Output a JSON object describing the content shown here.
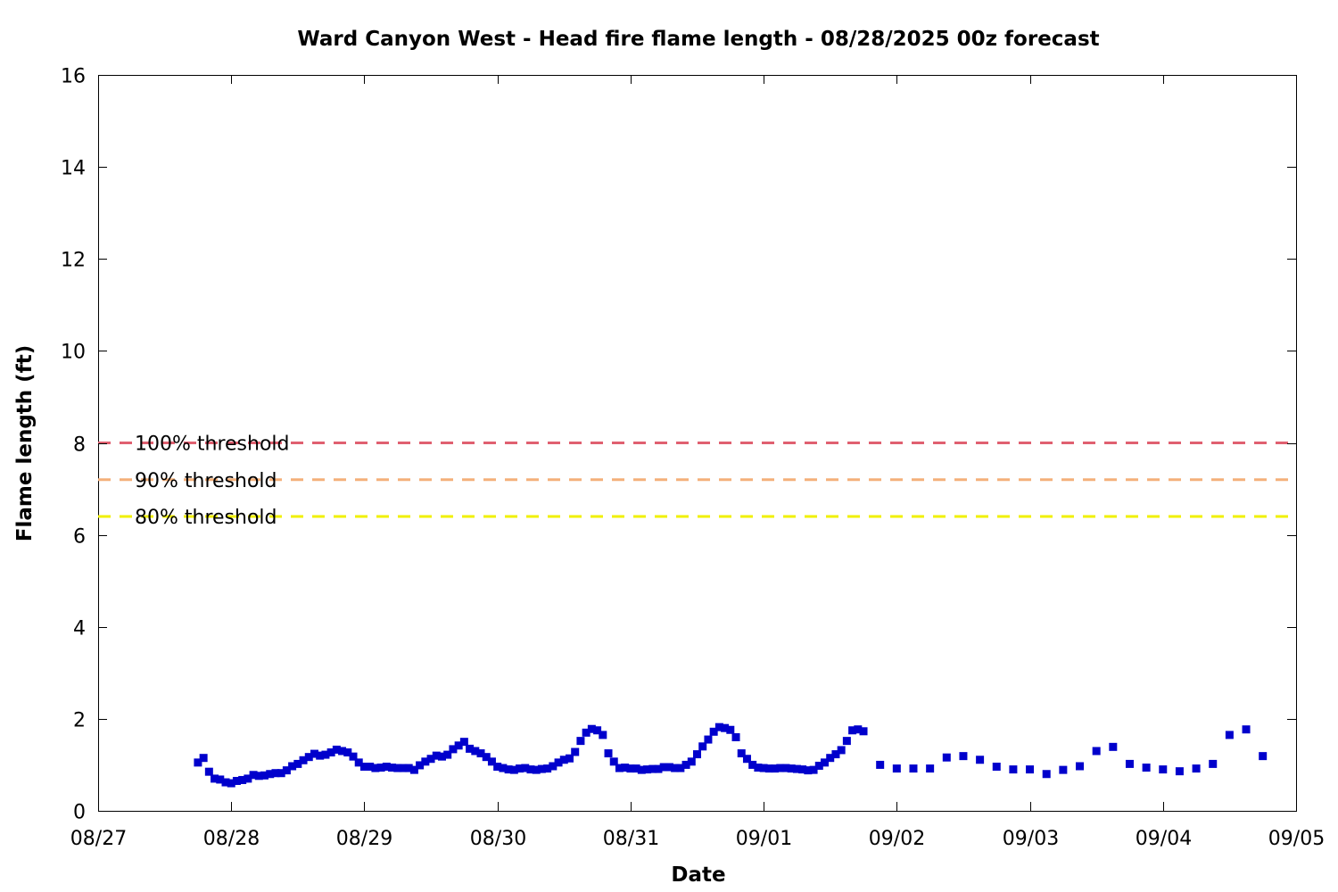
{
  "chart_data": {
    "type": "scatter",
    "title": "Ward Canyon West - Head fire flame length - 08/28/2025 00z forecast",
    "xlabel": "Date",
    "ylabel": "Flame length (ft)",
    "x_axis": {
      "type": "date",
      "range": [
        "08/27",
        "09/05"
      ],
      "ticks": [
        "08/27",
        "08/28",
        "08/29",
        "08/30",
        "08/31",
        "09/01",
        "09/02",
        "09/03",
        "09/04",
        "09/05"
      ]
    },
    "y_axis": {
      "range": [
        0,
        16
      ],
      "ticks": [
        0,
        2,
        4,
        6,
        8,
        10,
        12,
        14,
        16
      ]
    },
    "grid": false,
    "thresholds": [
      {
        "label": "100% threshold",
        "value": 8.0,
        "color": "#e06070"
      },
      {
        "label": "90% threshold",
        "value": 7.2,
        "color": "#f4b07a"
      },
      {
        "label": "80% threshold",
        "value": 6.4,
        "color": "#f0f000"
      }
    ],
    "series": [
      {
        "color": "#0000cc",
        "marker": "square",
        "points": [
          [
            "08/27 18:00",
            1.05
          ],
          [
            "08/27 19:00",
            1.15
          ],
          [
            "08/27 20:00",
            0.85
          ],
          [
            "08/27 21:00",
            0.7
          ],
          [
            "08/27 22:00",
            0.68
          ],
          [
            "08/27 23:00",
            0.62
          ],
          [
            "08/28 00:00",
            0.6
          ],
          [
            "08/28 01:00",
            0.65
          ],
          [
            "08/28 02:00",
            0.67
          ],
          [
            "08/28 03:00",
            0.7
          ],
          [
            "08/28 04:00",
            0.78
          ],
          [
            "08/28 05:00",
            0.76
          ],
          [
            "08/28 06:00",
            0.77
          ],
          [
            "08/28 07:00",
            0.8
          ],
          [
            "08/28 08:00",
            0.82
          ],
          [
            "08/28 09:00",
            0.82
          ],
          [
            "08/28 10:00",
            0.88
          ],
          [
            "08/28 11:00",
            0.97
          ],
          [
            "08/28 12:00",
            1.02
          ],
          [
            "08/28 13:00",
            1.1
          ],
          [
            "08/28 14:00",
            1.17
          ],
          [
            "08/28 15:00",
            1.24
          ],
          [
            "08/28 16:00",
            1.2
          ],
          [
            "08/28 17:00",
            1.22
          ],
          [
            "08/28 18:00",
            1.27
          ],
          [
            "08/28 19:00",
            1.33
          ],
          [
            "08/28 20:00",
            1.3
          ],
          [
            "08/28 21:00",
            1.27
          ],
          [
            "08/28 22:00",
            1.18
          ],
          [
            "08/28 23:00",
            1.05
          ],
          [
            "08/29 00:00",
            0.96
          ],
          [
            "08/29 01:00",
            0.96
          ],
          [
            "08/29 02:00",
            0.93
          ],
          [
            "08/29 03:00",
            0.94
          ],
          [
            "08/29 04:00",
            0.96
          ],
          [
            "08/29 05:00",
            0.94
          ],
          [
            "08/29 06:00",
            0.93
          ],
          [
            "08/29 07:00",
            0.93
          ],
          [
            "08/29 08:00",
            0.93
          ],
          [
            "08/29 09:00",
            0.89
          ],
          [
            "08/29 10:00",
            0.99
          ],
          [
            "08/29 11:00",
            1.07
          ],
          [
            "08/29 12:00",
            1.13
          ],
          [
            "08/29 13:00",
            1.2
          ],
          [
            "08/29 14:00",
            1.18
          ],
          [
            "08/29 15:00",
            1.22
          ],
          [
            "08/29 16:00",
            1.34
          ],
          [
            "08/29 17:00",
            1.42
          ],
          [
            "08/29 18:00",
            1.5
          ],
          [
            "08/29 19:00",
            1.35
          ],
          [
            "08/29 20:00",
            1.3
          ],
          [
            "08/29 21:00",
            1.25
          ],
          [
            "08/29 22:00",
            1.17
          ],
          [
            "08/29 23:00",
            1.07
          ],
          [
            "08/30 00:00",
            0.96
          ],
          [
            "08/30 01:00",
            0.93
          ],
          [
            "08/30 02:00",
            0.9
          ],
          [
            "08/30 03:00",
            0.89
          ],
          [
            "08/30 04:00",
            0.92
          ],
          [
            "08/30 05:00",
            0.93
          ],
          [
            "08/30 06:00",
            0.9
          ],
          [
            "08/30 07:00",
            0.89
          ],
          [
            "08/30 08:00",
            0.91
          ],
          [
            "08/30 09:00",
            0.92
          ],
          [
            "08/30 10:00",
            0.97
          ],
          [
            "08/30 11:00",
            1.05
          ],
          [
            "08/30 12:00",
            1.11
          ],
          [
            "08/30 13:00",
            1.14
          ],
          [
            "08/30 14:00",
            1.28
          ],
          [
            "08/30 15:00",
            1.52
          ],
          [
            "08/30 16:00",
            1.7
          ],
          [
            "08/30 17:00",
            1.78
          ],
          [
            "08/30 18:00",
            1.75
          ],
          [
            "08/30 19:00",
            1.65
          ],
          [
            "08/30 20:00",
            1.25
          ],
          [
            "08/30 21:00",
            1.07
          ],
          [
            "08/30 22:00",
            0.93
          ],
          [
            "08/30 23:00",
            0.94
          ],
          [
            "08/31 00:00",
            0.92
          ],
          [
            "08/31 01:00",
            0.92
          ],
          [
            "08/31 02:00",
            0.89
          ],
          [
            "08/31 03:00",
            0.9
          ],
          [
            "08/31 04:00",
            0.91
          ],
          [
            "08/31 05:00",
            0.91
          ],
          [
            "08/31 06:00",
            0.95
          ],
          [
            "08/31 07:00",
            0.95
          ],
          [
            "08/31 08:00",
            0.93
          ],
          [
            "08/31 09:00",
            0.93
          ],
          [
            "08/31 10:00",
            1.0
          ],
          [
            "08/31 11:00",
            1.07
          ],
          [
            "08/31 12:00",
            1.23
          ],
          [
            "08/31 13:00",
            1.4
          ],
          [
            "08/31 14:00",
            1.55
          ],
          [
            "08/31 15:00",
            1.72
          ],
          [
            "08/31 16:00",
            1.82
          ],
          [
            "08/31 17:00",
            1.8
          ],
          [
            "08/31 18:00",
            1.76
          ],
          [
            "08/31 19:00",
            1.6
          ],
          [
            "08/31 20:00",
            1.25
          ],
          [
            "08/31 21:00",
            1.13
          ],
          [
            "08/31 22:00",
            1.0
          ],
          [
            "08/31 23:00",
            0.94
          ],
          [
            "09/01 00:00",
            0.93
          ],
          [
            "09/01 01:00",
            0.92
          ],
          [
            "09/01 02:00",
            0.92
          ],
          [
            "09/01 03:00",
            0.93
          ],
          [
            "09/01 04:00",
            0.93
          ],
          [
            "09/01 05:00",
            0.92
          ],
          [
            "09/01 06:00",
            0.91
          ],
          [
            "09/01 07:00",
            0.9
          ],
          [
            "09/01 08:00",
            0.88
          ],
          [
            "09/01 09:00",
            0.89
          ],
          [
            "09/01 10:00",
            0.98
          ],
          [
            "09/01 11:00",
            1.05
          ],
          [
            "09/01 12:00",
            1.15
          ],
          [
            "09/01 13:00",
            1.23
          ],
          [
            "09/01 14:00",
            1.32
          ],
          [
            "09/01 15:00",
            1.52
          ],
          [
            "09/01 16:00",
            1.75
          ],
          [
            "09/01 17:00",
            1.77
          ],
          [
            "09/01 18:00",
            1.73
          ],
          [
            "09/01 21:00",
            1.0
          ],
          [
            "09/02 00:00",
            0.92
          ],
          [
            "09/02 03:00",
            0.92
          ],
          [
            "09/02 06:00",
            0.92
          ],
          [
            "09/02 09:00",
            1.16
          ],
          [
            "09/02 12:00",
            1.19
          ],
          [
            "09/02 15:00",
            1.11
          ],
          [
            "09/02 18:00",
            0.96
          ],
          [
            "09/02 21:00",
            0.9
          ],
          [
            "09/03 00:00",
            0.9
          ],
          [
            "09/03 03:00",
            0.8
          ],
          [
            "09/03 06:00",
            0.89
          ],
          [
            "09/03 09:00",
            0.97
          ],
          [
            "09/03 12:00",
            1.3
          ],
          [
            "09/03 15:00",
            1.39
          ],
          [
            "09/03 18:00",
            1.02
          ],
          [
            "09/03 21:00",
            0.94
          ],
          [
            "09/04 00:00",
            0.9
          ],
          [
            "09/04 03:00",
            0.86
          ],
          [
            "09/04 06:00",
            0.92
          ],
          [
            "09/04 09:00",
            1.02
          ],
          [
            "09/04 12:00",
            1.65
          ],
          [
            "09/04 15:00",
            1.77
          ],
          [
            "09/04 18:00",
            1.19
          ]
        ]
      }
    ]
  }
}
